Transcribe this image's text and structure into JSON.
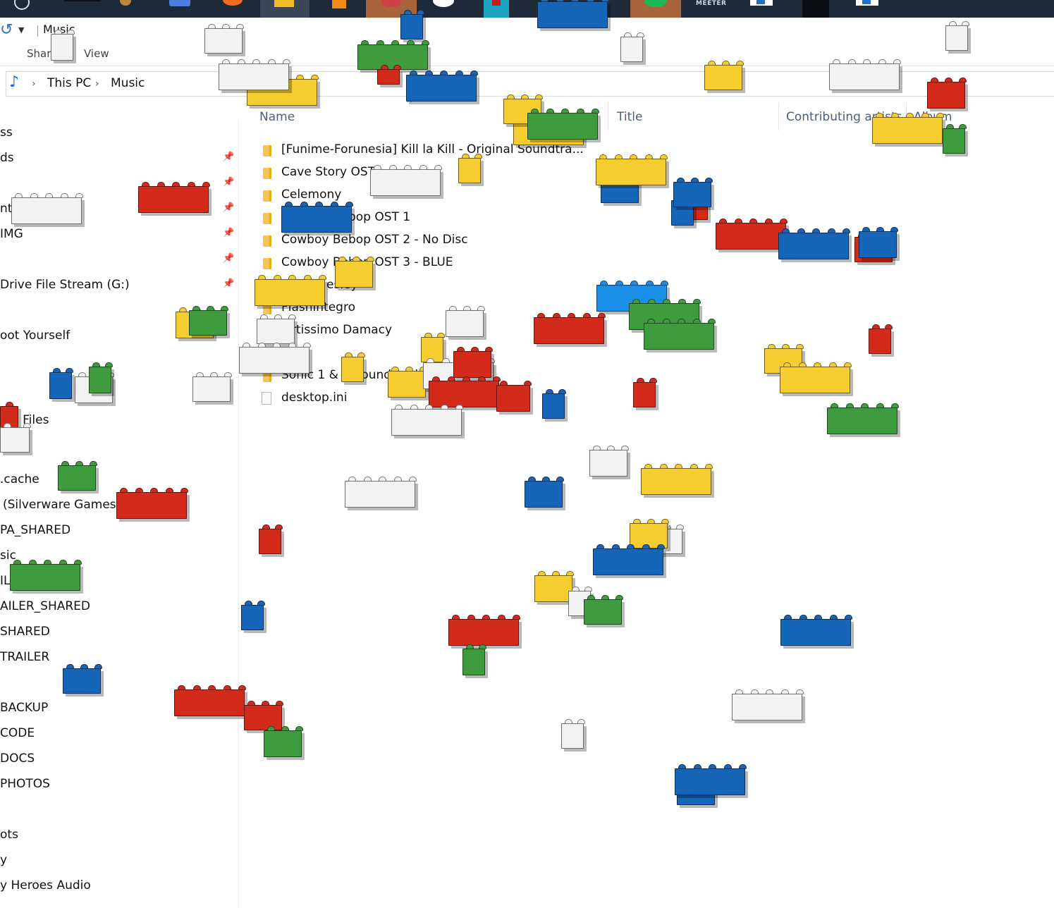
{
  "window": {
    "title": "Music"
  },
  "ribbon": {
    "tabs": [
      "Share",
      "View"
    ]
  },
  "address": {
    "crumbs": [
      "This PC",
      "Music"
    ]
  },
  "columns": {
    "name": "Name",
    "title": "Title",
    "contributing": "Contributing artists",
    "album": "Album"
  },
  "files": [
    {
      "name": "[Funime-Forunesia] Kill la Kill - Original Soundtra...",
      "type": "folder"
    },
    {
      "name": "Cave Story OST",
      "type": "folder"
    },
    {
      "name": "Celemony",
      "type": "folder"
    },
    {
      "name": "Cowboy Bebop OST 1",
      "type": "folder"
    },
    {
      "name": "Cowboy Bebop OST 2 - No Disc",
      "type": "folder"
    },
    {
      "name": "Cowboy Bebop OST 3 - BLUE",
      "type": "folder"
    },
    {
      "name": "esley",
      "type": "folder"
    },
    {
      "name": "Flashintegro",
      "type": "folder"
    },
    {
      "name": "rtissimo Damacy",
      "type": "folder"
    },
    {
      "name": "",
      "type": "folder"
    },
    {
      "name": "Sonic 1 & 2 Soundtrack",
      "type": "folder"
    },
    {
      "name": "desktop.ini",
      "type": "file"
    }
  ],
  "nav": {
    "items": [
      "ss",
      "ds",
      "nts",
      "IMG",
      "Drive File Stream (G:)",
      "oot Yourself",
      "l Files",
      ".cache",
      "(Silverware Games)",
      "PA_SHARED",
      "sic",
      "IL",
      "AILER_SHARED",
      "SHARED",
      "TRAILER",
      "BACKUP",
      "CODE",
      "DOCS",
      "PHOTOS",
      "ots",
      "y",
      "y Heroes Audio"
    ]
  },
  "taskbar": {
    "meeter_label": "MEETER"
  },
  "colors": {
    "lego_red": "#d42a1a",
    "lego_blue": "#1565b8",
    "lego_green": "#3e9c3e",
    "lego_yellow": "#f5cd2e",
    "lego_white": "#f2f2f2",
    "lego_sky": "#1a8fe8"
  }
}
